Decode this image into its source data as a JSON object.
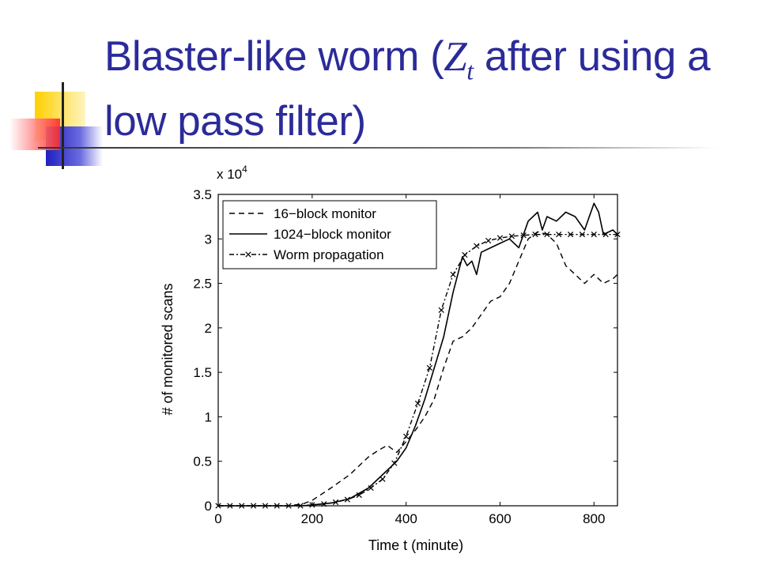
{
  "slide": {
    "title_part1": "Blaster-like worm (",
    "title_var": "Z",
    "title_sub": "t",
    "title_part2": " after using a low pass filter)",
    "accent": "#2b2b9a"
  },
  "chart_data": {
    "type": "line",
    "title": "",
    "xlabel": "Time t (minute)",
    "ylabel": "# of monitored scans",
    "y_multiplier_label": "x 10",
    "y_multiplier_exp": "4",
    "xlim": [
      0,
      850
    ],
    "ylim": [
      0,
      3.5
    ],
    "xticks": [
      0,
      200,
      400,
      600,
      800
    ],
    "yticks": [
      0,
      0.5,
      1,
      1.5,
      2,
      2.5,
      3,
      3.5
    ],
    "ytick_labels": [
      "0",
      "0.5",
      "1",
      "1.5",
      "2",
      "2.5",
      "3",
      "3.5"
    ],
    "grid": false,
    "legend_position": "top-left",
    "series": [
      {
        "name": "16−block monitor",
        "style": "dashed",
        "x": [
          0,
          100,
          150,
          180,
          200,
          240,
          280,
          320,
          340,
          360,
          380,
          400,
          420,
          440,
          460,
          480,
          500,
          520,
          540,
          560,
          580,
          600,
          620,
          640,
          660,
          680,
          700,
          720,
          740,
          760,
          780,
          800,
          820,
          840,
          850
        ],
        "y": [
          0,
          0,
          0,
          0.02,
          0.06,
          0.2,
          0.35,
          0.55,
          0.62,
          0.68,
          0.6,
          0.72,
          0.85,
          1.0,
          1.2,
          1.55,
          1.85,
          1.9,
          2.0,
          2.15,
          2.3,
          2.35,
          2.5,
          2.75,
          3.0,
          3.08,
          3.05,
          2.95,
          2.7,
          2.6,
          2.5,
          2.6,
          2.5,
          2.55,
          2.6
        ]
      },
      {
        "name": "1024−block monitor",
        "style": "solid",
        "x": [
          0,
          150,
          180,
          200,
          240,
          280,
          320,
          360,
          380,
          400,
          420,
          440,
          460,
          480,
          500,
          510,
          520,
          530,
          540,
          550,
          560,
          580,
          600,
          620,
          640,
          660,
          680,
          690,
          700,
          720,
          740,
          760,
          780,
          800,
          810,
          820,
          840,
          850
        ],
        "y": [
          0,
          0,
          0,
          0.01,
          0.03,
          0.08,
          0.2,
          0.4,
          0.5,
          0.65,
          0.9,
          1.2,
          1.55,
          1.9,
          2.4,
          2.6,
          2.8,
          2.7,
          2.75,
          2.6,
          2.85,
          2.9,
          2.95,
          3.0,
          2.9,
          3.2,
          3.3,
          3.1,
          3.25,
          3.2,
          3.3,
          3.25,
          3.1,
          3.4,
          3.3,
          3.05,
          3.1,
          3.05
        ]
      },
      {
        "name": "Worm propagation",
        "style": "dash-dot-x",
        "x": [
          0,
          25,
          50,
          75,
          100,
          125,
          150,
          175,
          200,
          225,
          250,
          275,
          300,
          325,
          350,
          375,
          400,
          425,
          450,
          475,
          500,
          525,
          550,
          575,
          600,
          625,
          650,
          675,
          700,
          725,
          750,
          775,
          800,
          825,
          850
        ],
        "y": [
          0,
          0,
          0,
          0,
          0,
          0,
          0,
          0,
          0.01,
          0.02,
          0.04,
          0.07,
          0.12,
          0.2,
          0.3,
          0.48,
          0.78,
          1.15,
          1.55,
          2.2,
          2.6,
          2.82,
          2.92,
          2.98,
          3.01,
          3.03,
          3.04,
          3.05,
          3.05,
          3.05,
          3.05,
          3.05,
          3.05,
          3.05,
          3.05
        ]
      }
    ]
  }
}
